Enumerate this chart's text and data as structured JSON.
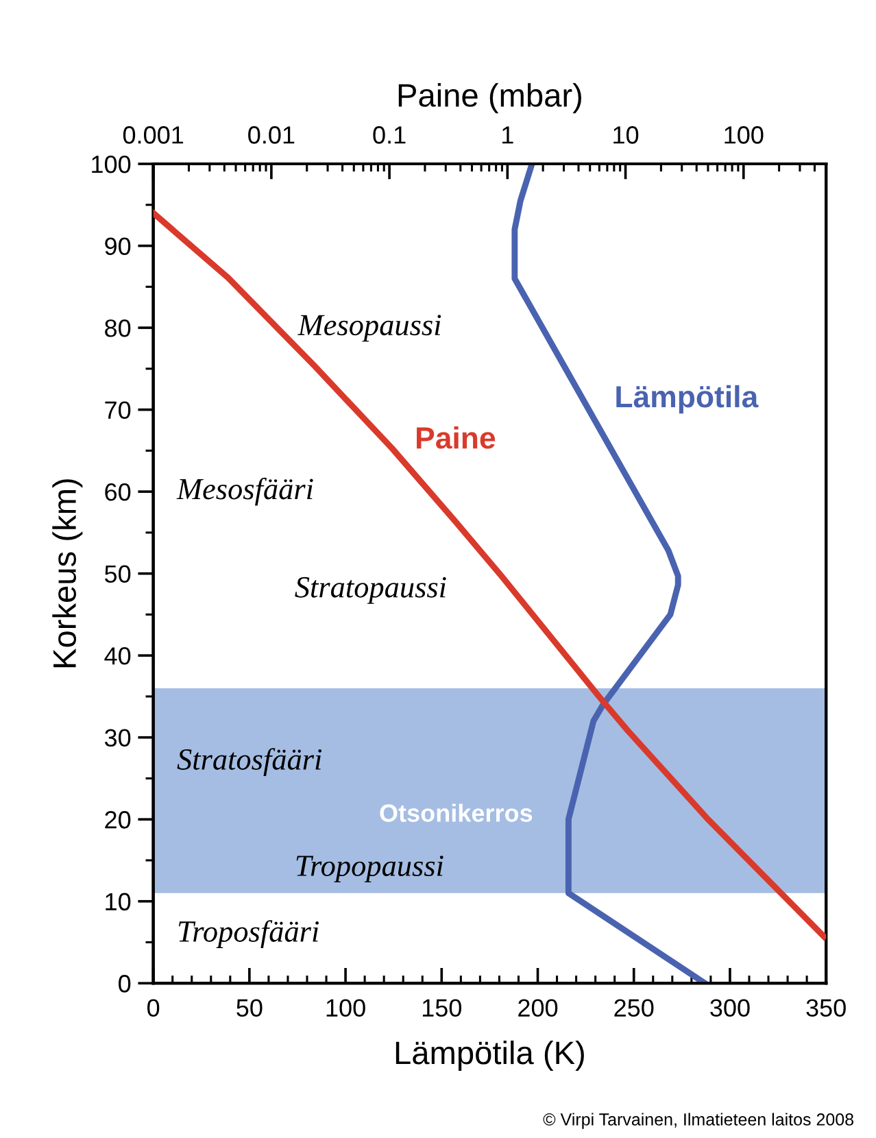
{
  "chart_data": {
    "type": "line",
    "xlabel": "Lämpötila (K)",
    "ylabel": "Korkeus (km)",
    "x2label": "Paine (mbar)",
    "xlim": [
      0,
      350
    ],
    "xticks": [
      0,
      50,
      100,
      150,
      200,
      250,
      300,
      350
    ],
    "x2lim": [
      0.001,
      500
    ],
    "x2ticks": [
      0.001,
      0.01,
      0.1,
      1,
      10,
      100
    ],
    "ylim": [
      0,
      100
    ],
    "yticks": [
      0,
      10,
      20,
      30,
      40,
      50,
      60,
      70,
      80,
      90,
      100
    ],
    "log": "x2",
    "grid": false,
    "legend": false,
    "marker": "none",
    "line_style": "solid",
    "series": [
      {
        "name": "Lämpötila",
        "color": "#4a63b0",
        "x": [
          287,
          216,
          216,
          229,
          234,
          269,
          273,
          273,
          268,
          188,
          188,
          191,
          197
        ],
        "values": [
          0,
          11,
          20,
          32,
          34,
          45,
          48.6,
          49.7,
          52.8,
          86,
          92,
          95.5,
          100
        ]
      },
      {
        "name": "Paine",
        "color": "#d93a2b",
        "axis": "x2",
        "x": [
          480,
          50,
          10.5,
          6.2,
          0.89,
          0.36,
          0.105,
          0.023,
          0.0043,
          0.001
        ],
        "values": [
          5.7,
          20,
          30.8,
          34.7,
          49.7,
          56.4,
          65.3,
          75.4,
          86.1,
          94
        ]
      }
    ],
    "bands": [
      {
        "axis": "y",
        "from": 11,
        "to": 36,
        "label": "Otsonikerros",
        "color": "#5b86cc"
      }
    ],
    "annotations": [
      "Mesopaussi",
      "Mesosfääri",
      "Stratopaussi",
      "Stratosfääri",
      "Tropopaussi",
      "Troposfääri",
      "© Virpi Tarvainen, Ilmatieteen laitos 2008"
    ]
  }
}
